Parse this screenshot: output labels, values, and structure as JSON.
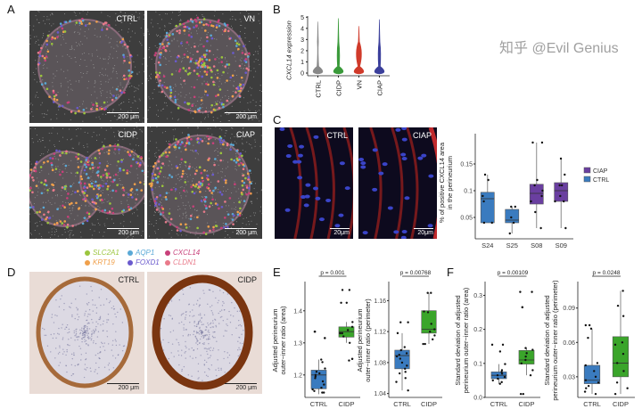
{
  "panels": {
    "A": "A",
    "B": "B",
    "C": "C",
    "D": "D",
    "E": "E",
    "F": "F"
  },
  "panelA": {
    "images": [
      {
        "label": "CTRL",
        "scale": "200 μm"
      },
      {
        "label": "VN",
        "scale": "200 μm"
      },
      {
        "label": "CIDP",
        "scale": "200 μm"
      },
      {
        "label": "CIAP",
        "scale": "200 μm"
      }
    ],
    "legend": [
      {
        "gene": "SLC2A1",
        "color": "#9bc53d"
      },
      {
        "gene": "AQP1",
        "color": "#5aa9d6"
      },
      {
        "gene": "CXCL14",
        "color": "#c8407a"
      },
      {
        "gene": "KRT19",
        "color": "#f0a04b"
      },
      {
        "gene": "FOXD1",
        "color": "#6a5acd"
      },
      {
        "gene": "CLDN1",
        "color": "#e97a8a"
      }
    ]
  },
  "panelC": {
    "images": [
      {
        "label": "CTRL",
        "scale": "20μm"
      },
      {
        "label": "CIAP",
        "scale": "20μm"
      }
    ]
  },
  "panelD": {
    "images": [
      {
        "label": "CTRL",
        "scale": "200 μm"
      },
      {
        "label": "CIDP",
        "scale": "200 μm"
      }
    ]
  },
  "watermark": "知乎 @Evil Genius",
  "chart_data": [
    {
      "type": "violin",
      "panel": "B",
      "ylabel": "CXCL14 expression",
      "categories": [
        "CTRL",
        "CIDP",
        "VN",
        "CIAP"
      ],
      "colors": [
        "#888888",
        "#3a9a3a",
        "#d03a2a",
        "#3b3f9b"
      ],
      "max": [
        4.6,
        4.9,
        4.2,
        4.8
      ],
      "yticks": [
        0,
        1,
        2,
        3,
        4,
        5
      ],
      "ylim": [
        0,
        5.1
      ]
    },
    {
      "type": "boxplot",
      "panel": "C",
      "ylabel": [
        "% of positive CXCL14 area",
        "in the perineurium"
      ],
      "categories": [
        "S24",
        "S25",
        "S08",
        "S09"
      ],
      "groups": [
        "CTRL",
        "CTRL",
        "CIAP",
        "CIAP"
      ],
      "legend": [
        {
          "name": "CIAP",
          "color": "#6a3fa0"
        },
        {
          "name": "CTRL",
          "color": "#3a7bbf"
        }
      ],
      "yticks": [
        0.05,
        0.1,
        0.15
      ],
      "ylim": [
        0.01,
        0.2
      ],
      "boxes": [
        {
          "q1": 0.04,
          "median": 0.085,
          "q3": 0.097,
          "lo": 0.04,
          "hi": 0.13,
          "points": [
            0.13,
            0.12,
            0.09,
            0.08,
            0.04,
            0.04
          ]
        },
        {
          "q1": 0.04,
          "median": 0.045,
          "q3": 0.065,
          "lo": 0.02,
          "hi": 0.07,
          "points": [
            0.07,
            0.07,
            0.05,
            0.04,
            0.02
          ]
        },
        {
          "q1": 0.075,
          "median": 0.095,
          "q3": 0.112,
          "lo": 0.03,
          "hi": 0.19,
          "points": [
            0.19,
            0.19,
            0.12,
            0.11,
            0.1,
            0.09,
            0.08,
            0.06,
            0.03
          ]
        },
        {
          "q1": 0.08,
          "median": 0.1,
          "q3": 0.115,
          "lo": 0.03,
          "hi": 0.16,
          "points": [
            0.16,
            0.13,
            0.11,
            0.11,
            0.09,
            0.08,
            0.08,
            0.03
          ]
        }
      ]
    },
    {
      "type": "boxplot",
      "panel": "E",
      "ylabel": [
        "Adjusted perineurium",
        "outer−inner ratio (area)"
      ],
      "categories": [
        "CTRL",
        "CIDP"
      ],
      "pvalue": "p = 0.001",
      "yticks": [
        1.2,
        1.3,
        1.4
      ],
      "ylim": [
        1.13,
        1.48
      ],
      "boxes": [
        {
          "q1": 1.157,
          "median": 1.2,
          "q3": 1.215,
          "lo": 1.14,
          "hi": 1.248,
          "points": [
            1.335,
            1.335,
            1.315,
            1.315,
            1.248,
            1.24,
            1.22,
            1.21,
            1.205,
            1.2,
            1.195,
            1.19,
            1.18,
            1.17,
            1.16,
            1.155,
            1.15,
            1.145,
            1.145
          ]
        },
        {
          "q1": 1.318,
          "median": 1.335,
          "q3": 1.35,
          "lo": 1.3,
          "hi": 1.365,
          "points": [
            1.465,
            1.465,
            1.425,
            1.425,
            1.365,
            1.35,
            1.34,
            1.33,
            1.33,
            1.32,
            1.3,
            1.25,
            1.25,
            1.245
          ]
        }
      ]
    },
    {
      "type": "boxplot",
      "panel": "E",
      "ylabel": [
        "Adjusted perineurium",
        "outer−inner ratio (perimeter)"
      ],
      "categories": [
        "CTRL",
        "CIDP"
      ],
      "pvalue": "p = 0.00768",
      "yticks": [
        1.04,
        1.08,
        1.12,
        1.16
      ],
      "ylim": [
        1.035,
        1.18
      ],
      "boxes": [
        {
          "q1": 1.072,
          "median": 1.089,
          "q3": 1.096,
          "lo": 1.044,
          "hi": 1.118,
          "points": [
            1.132,
            1.132,
            1.118,
            1.1,
            1.096,
            1.092,
            1.09,
            1.088,
            1.085,
            1.08,
            1.076,
            1.072,
            1.068,
            1.066,
            1.06,
            1.055,
            1.044
          ]
        },
        {
          "q1": 1.118,
          "median": 1.123,
          "q3": 1.147,
          "lo": 1.104,
          "hi": 1.17,
          "points": [
            1.17,
            1.17,
            1.146,
            1.145,
            1.13,
            1.123,
            1.12,
            1.115,
            1.11,
            1.104,
            1.104
          ]
        }
      ]
    },
    {
      "type": "boxplot",
      "panel": "F",
      "ylabel": [
        "Standard deviation of adjusted",
        "perineurium outer−inner ratio (area)"
      ],
      "categories": [
        "CTRL",
        "CIDP"
      ],
      "pvalue": "p = 0.00109",
      "yticks": [
        0.0,
        0.1,
        0.2,
        0.3
      ],
      "ylim": [
        0.0,
        0.33
      ],
      "boxes": [
        {
          "q1": 0.055,
          "median": 0.065,
          "q3": 0.075,
          "lo": 0.04,
          "hi": 0.098,
          "points": [
            0.155,
            0.155,
            0.135,
            0.098,
            0.08,
            0.075,
            0.07,
            0.065,
            0.06,
            0.055,
            0.05,
            0.045,
            0.04
          ]
        },
        {
          "q1": 0.098,
          "median": 0.11,
          "q3": 0.138,
          "lo": 0.065,
          "hi": 0.145,
          "points": [
            0.31,
            0.31,
            0.265,
            0.265,
            0.145,
            0.14,
            0.13,
            0.12,
            0.11,
            0.1,
            0.08,
            0.065,
            0.01,
            0.01
          ]
        }
      ]
    },
    {
      "type": "boxplot",
      "panel": "F",
      "ylabel": [
        "Standard deviation of adjusted",
        "perineurium outer−inner ratio (perimeter)"
      ],
      "categories": [
        "CTRL",
        "CIDP"
      ],
      "pvalue": "p = 0.0248",
      "yticks": [
        0.03,
        0.06,
        0.09
      ],
      "ylim": [
        0.012,
        0.11
      ],
      "boxes": [
        {
          "q1": 0.024,
          "median": 0.027,
          "q3": 0.04,
          "lo": 0.015,
          "hi": 0.072,
          "points": [
            0.075,
            0.075,
            0.072,
            0.064,
            0.042,
            0.04,
            0.035,
            0.03,
            0.027,
            0.025,
            0.022,
            0.02,
            0.017,
            0.015
          ]
        },
        {
          "q1": 0.03,
          "median": 0.042,
          "q3": 0.065,
          "lo": 0.015,
          "hi": 0.105,
          "points": [
            0.105,
            0.092,
            0.083,
            0.06,
            0.058,
            0.05,
            0.042,
            0.035,
            0.025,
            0.02,
            0.015
          ]
        }
      ]
    }
  ]
}
